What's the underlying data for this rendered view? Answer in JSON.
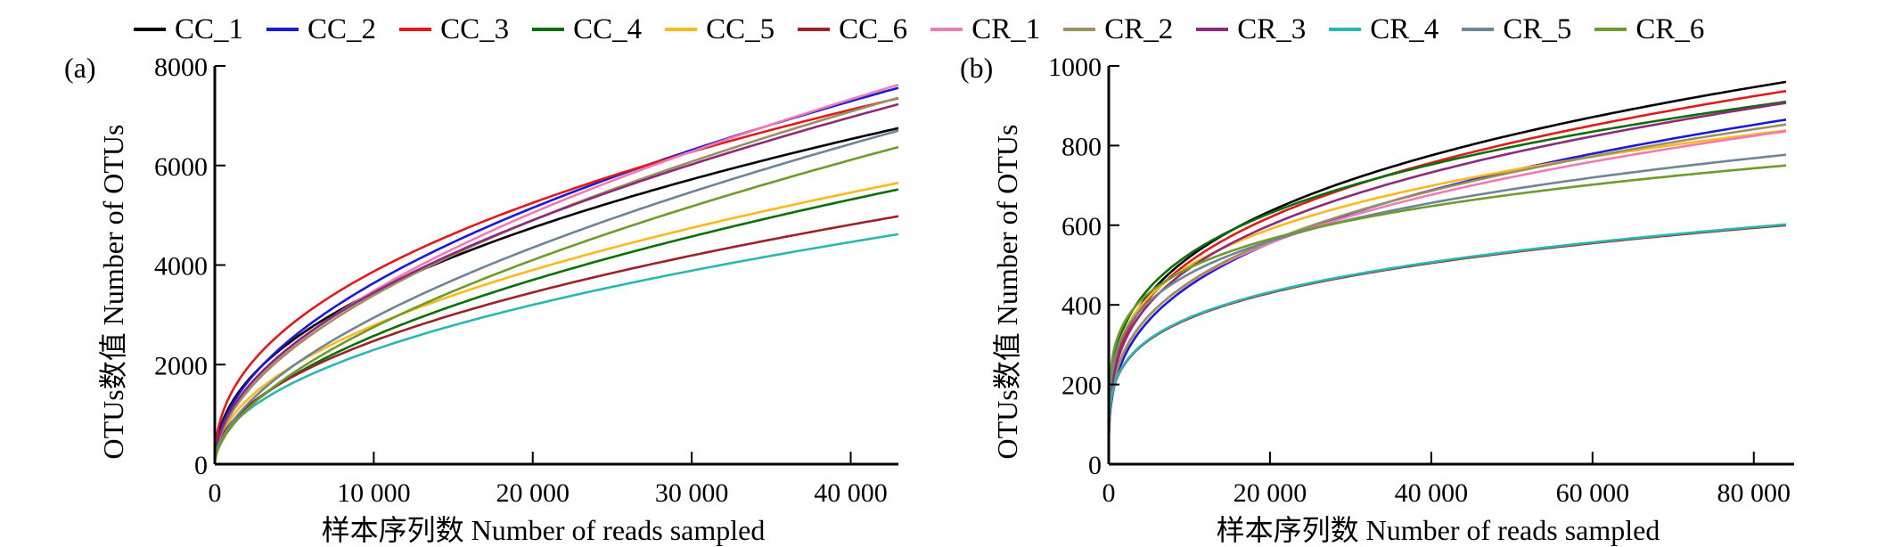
{
  "legend": [
    {
      "name": "CC_1",
      "color": "#000000"
    },
    {
      "name": "CC_2",
      "color": "#1a1ad6"
    },
    {
      "name": "CC_3",
      "color": "#e01a1a"
    },
    {
      "name": "CC_4",
      "color": "#0a6e0a"
    },
    {
      "name": "CC_5",
      "color": "#ffb81c"
    },
    {
      "name": "CC_6",
      "color": "#9b2226"
    },
    {
      "name": "CR_1",
      "color": "#f07ab4"
    },
    {
      "name": "CR_2",
      "color": "#9a9060"
    },
    {
      "name": "CR_3",
      "color": "#8e2a7a"
    },
    {
      "name": "CR_4",
      "color": "#2ab7b2"
    },
    {
      "name": "CR_5",
      "color": "#6e8596"
    },
    {
      "name": "CR_6",
      "color": "#6f9a2c"
    }
  ],
  "chart_data": [
    {
      "type": "line",
      "panel_label": "(a)",
      "title": "",
      "xlabel": "样本序列数 Number of reads sampled",
      "ylabel": "OTUs数值 Number of OTUs",
      "xlim": [
        0,
        43000
      ],
      "ylim": [
        0,
        8000
      ],
      "xticks": [
        0,
        10000,
        20000,
        30000,
        40000
      ],
      "xtick_labels": [
        "0",
        "10 000",
        "20 000",
        "30 000",
        "40 000"
      ],
      "yticks": [
        0,
        2000,
        4000,
        6000,
        8000
      ],
      "ytick_labels": [
        "0",
        "2000",
        "4000",
        "6000",
        "8000"
      ],
      "grid": false,
      "legend_position": "top",
      "x_end": 43000,
      "series": [
        {
          "name": "CC_1",
          "end_value": 6750,
          "mid_value_20000": 4750
        },
        {
          "name": "CC_2",
          "end_value": 7560,
          "mid_value_20000": 5150
        },
        {
          "name": "CC_3",
          "end_value": 7350,
          "mid_value_20000": 5250
        },
        {
          "name": "CC_4",
          "end_value": 5520,
          "mid_value_20000": 3700
        },
        {
          "name": "CC_5",
          "end_value": 5650,
          "mid_value_20000": 3900
        },
        {
          "name": "CC_6",
          "end_value": 4980,
          "mid_value_20000": 3450
        },
        {
          "name": "CR_1",
          "end_value": 7620,
          "mid_value_20000": 5050
        },
        {
          "name": "CR_2",
          "end_value": 7360,
          "mid_value_20000": 4900
        },
        {
          "name": "CR_3",
          "end_value": 7230,
          "mid_value_20000": 4900
        },
        {
          "name": "CR_4",
          "end_value": 4620,
          "mid_value_20000": 3200
        },
        {
          "name": "CR_5",
          "end_value": 6700,
          "mid_value_20000": 4350
        },
        {
          "name": "CR_6",
          "end_value": 6370,
          "mid_value_20000": 4100
        }
      ]
    },
    {
      "type": "line",
      "panel_label": "(b)",
      "title": "",
      "xlabel": "样本序列数 Number of reads sampled",
      "ylabel": "OTUs数值 Number of OTUs",
      "xlim": [
        0,
        85000
      ],
      "ylim": [
        0,
        1000
      ],
      "xticks": [
        0,
        20000,
        40000,
        60000,
        80000
      ],
      "xtick_labels": [
        "0",
        "20 000",
        "40 000",
        "60 000",
        "80 000"
      ],
      "yticks": [
        0,
        200,
        400,
        600,
        800,
        1000
      ],
      "ytick_labels": [
        "0",
        "200",
        "400",
        "600",
        "800",
        "1000"
      ],
      "grid": false,
      "legend_position": "top",
      "x_end": 84000,
      "series": [
        {
          "name": "CC_1",
          "end_value": 960,
          "mid_value_20000": 635
        },
        {
          "name": "CC_2",
          "end_value": 865,
          "mid_value_20000": 555
        },
        {
          "name": "CC_3",
          "end_value": 937,
          "mid_value_20000": 620
        },
        {
          "name": "CC_4",
          "end_value": 910,
          "mid_value_20000": 630
        },
        {
          "name": "CC_5",
          "end_value": 838,
          "mid_value_20000": 590
        },
        {
          "name": "CC_6",
          "end_value": 600,
          "mid_value_20000": 430
        },
        {
          "name": "CR_1",
          "end_value": 836,
          "mid_value_20000": 555
        },
        {
          "name": "CR_2",
          "end_value": 853,
          "mid_value_20000": 560
        },
        {
          "name": "CR_3",
          "end_value": 907,
          "mid_value_20000": 600
        },
        {
          "name": "CR_4",
          "end_value": 602,
          "mid_value_20000": 432
        },
        {
          "name": "CR_5",
          "end_value": 777,
          "mid_value_20000": 560
        },
        {
          "name": "CR_6",
          "end_value": 750,
          "mid_value_20000": 565
        }
      ]
    }
  ]
}
